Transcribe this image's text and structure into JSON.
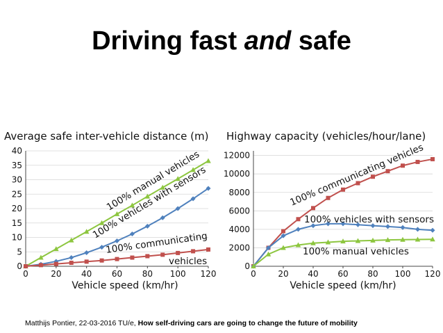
{
  "slide": {
    "title_pre": "Driving fast ",
    "title_em": "and",
    "title_post": " safe",
    "footer_plain": "Matthijs Pontier, 22-03-2016 TU/e, ",
    "footer_bold": "How self-driving cars  are going to change the future of mobility"
  },
  "chart_data": [
    {
      "type": "line",
      "title": "Average safe inter-vehicle distance (m)",
      "xlabel": "Vehicle speed (km/hr)",
      "ylabel": "",
      "xlim": [
        0,
        120
      ],
      "ylim": [
        0,
        40
      ],
      "x_ticks": [
        0,
        20,
        40,
        60,
        80,
        100,
        120
      ],
      "y_ticks": [
        0,
        5,
        10,
        15,
        20,
        25,
        30,
        35,
        40
      ],
      "grid": "horizontal",
      "x": [
        0,
        10,
        20,
        30,
        40,
        50,
        60,
        70,
        80,
        90,
        100,
        110,
        120
      ],
      "series": [
        {
          "name": "100% manual vehicles",
          "color": "#8dc63f",
          "marker": "triangle",
          "values": [
            0,
            3,
            6,
            9,
            12,
            15,
            18.1,
            21.1,
            24.2,
            27.3,
            30.3,
            33.4,
            36.5
          ]
        },
        {
          "name": "100% vehicles with sensors",
          "color": "#4f81bd",
          "marker": "diamond",
          "values": [
            0,
            0.7,
            1.7,
            3,
            4.7,
            6.6,
            8.8,
            11.2,
            13.9,
            16.8,
            20,
            23.4,
            27
          ]
        },
        {
          "name": "100% communicating vehicles",
          "color": "#c0504d",
          "marker": "square",
          "values": [
            0,
            0.4,
            0.8,
            1.2,
            1.6,
            2,
            2.5,
            3,
            3.5,
            4,
            4.6,
            5.2,
            5.8
          ]
        }
      ]
    },
    {
      "type": "line",
      "title": "Highway capacity (vehicles/hour/lane)",
      "xlabel": "Vehicle speed (km/hr)",
      "ylabel": "",
      "xlim": [
        0,
        120
      ],
      "ylim": [
        0,
        12500
      ],
      "x_ticks": [
        0,
        20,
        40,
        60,
        80,
        100,
        120
      ],
      "y_ticks": [
        0,
        2000,
        4000,
        6000,
        8000,
        10000,
        12000
      ],
      "grid": "horizontal",
      "x": [
        0,
        10,
        20,
        30,
        40,
        50,
        60,
        70,
        80,
        90,
        100,
        110,
        120
      ],
      "series": [
        {
          "name": "100% communicating vehicles",
          "color": "#c0504d",
          "marker": "square",
          "values": [
            0,
            2000,
            3800,
            5100,
            6300,
            7400,
            8300,
            9000,
            9700,
            10300,
            10900,
            11300,
            11600
          ]
        },
        {
          "name": "100% vehicles with sensors",
          "color": "#4f81bd",
          "marker": "diamond",
          "values": [
            0,
            2000,
            3300,
            4000,
            4400,
            4600,
            4600,
            4500,
            4400,
            4300,
            4200,
            4000,
            3900
          ]
        },
        {
          "name": "100% manual vehicles",
          "color": "#8dc63f",
          "marker": "triangle",
          "values": [
            0,
            1300,
            2000,
            2300,
            2500,
            2600,
            2700,
            2750,
            2800,
            2850,
            2880,
            2900,
            2920
          ]
        }
      ]
    }
  ]
}
